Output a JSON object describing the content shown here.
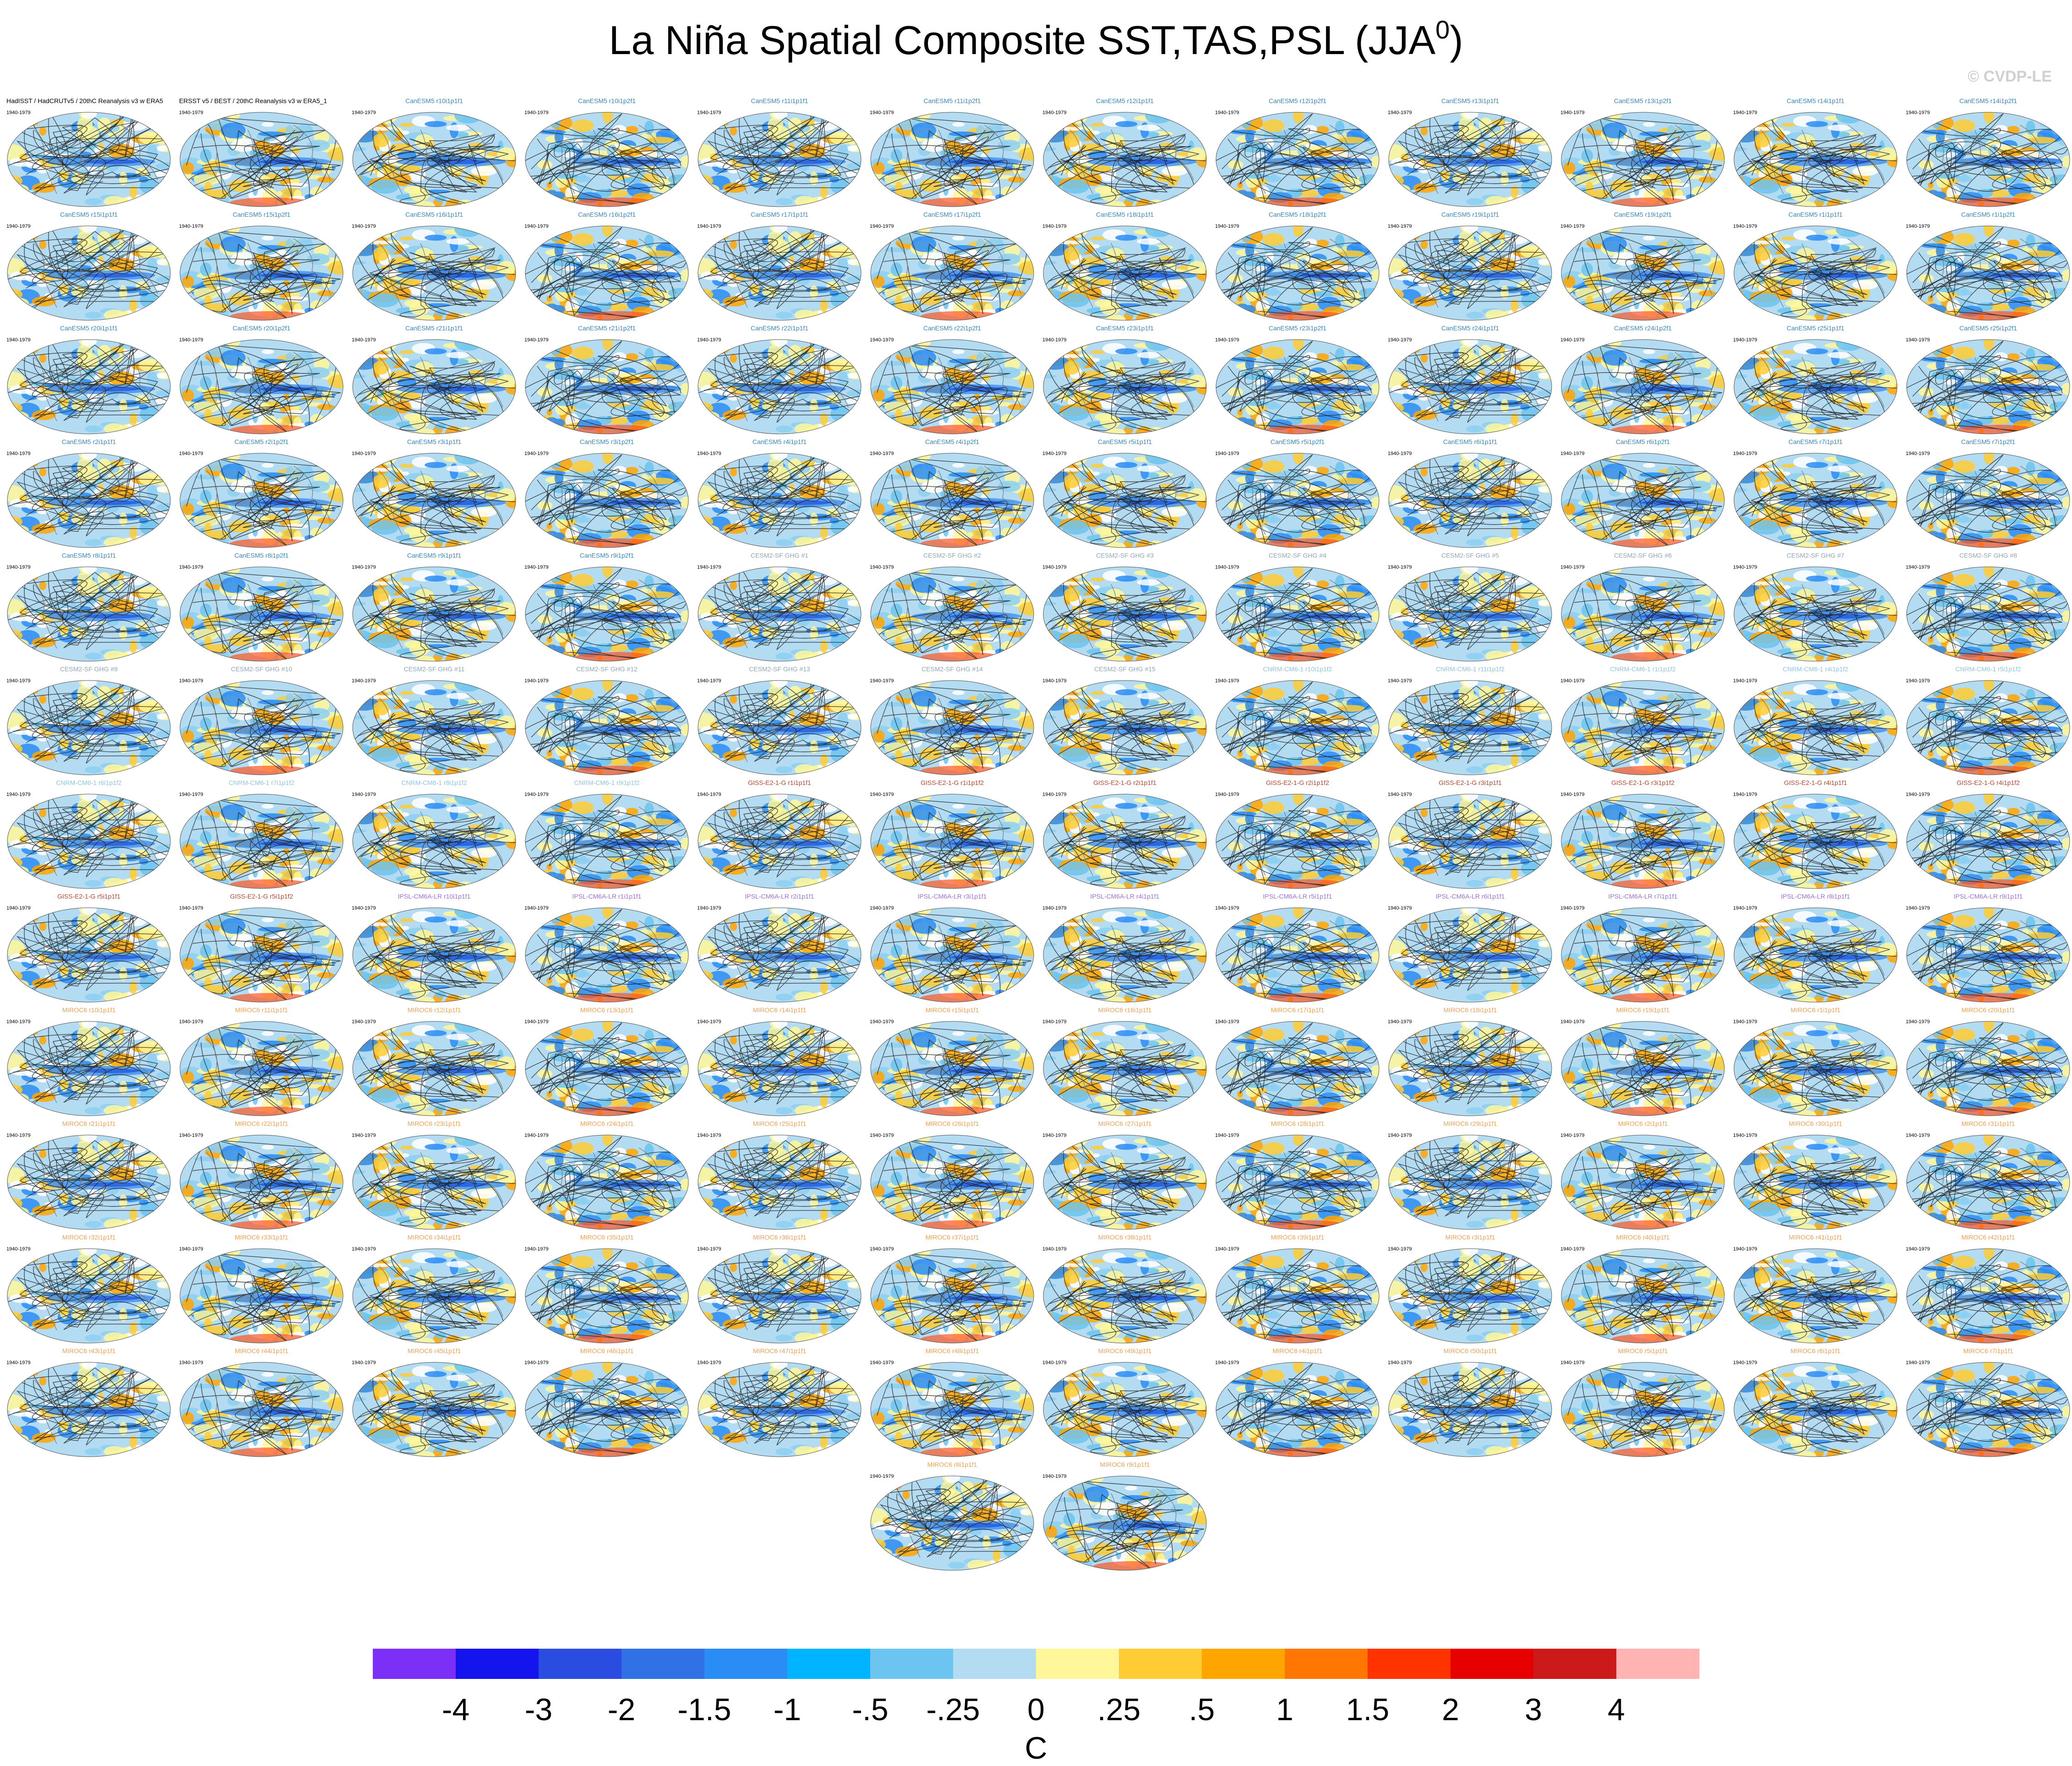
{
  "header": {
    "title": "La Niña Spatial Composite SST,TAS,PSL (JJA",
    "title_superscript": "0",
    "title_end": ")",
    "watermark": "© CVDP-LE"
  },
  "period": "1940-1979",
  "panels": [
    {
      "title": "HadISST / HadCRUTv5 / 20thC Reanalysis v3 w ERA5",
      "color": "#000000"
    },
    {
      "title": "ERSST v5 / BEST / 20thC Reanalysis v3 w ERA5_1",
      "color": "#000000"
    },
    {
      "title": "CanESM5 r10i1p1f1",
      "color": "#3a86b8"
    },
    {
      "title": "CanESM5 r10i1p2f1",
      "color": "#3a86b8"
    },
    {
      "title": "CanESM5 r11i1p1f1",
      "color": "#3a86b8"
    },
    {
      "title": "CanESM5 r11i1p2f1",
      "color": "#3a86b8"
    },
    {
      "title": "CanESM5 r12i1p1f1",
      "color": "#3a86b8"
    },
    {
      "title": "CanESM5 r12i1p2f1",
      "color": "#3a86b8"
    },
    {
      "title": "CanESM5 r13i1p1f1",
      "color": "#3a86b8"
    },
    {
      "title": "CanESM5 r13i1p2f1",
      "color": "#3a86b8"
    },
    {
      "title": "CanESM5 r14i1p1f1",
      "color": "#3a86b8"
    },
    {
      "title": "CanESM5 r14i1p2f1",
      "color": "#3a86b8"
    },
    {
      "title": "CanESM5 r15i1p1f1",
      "color": "#3a86b8"
    },
    {
      "title": "CanESM5 r15i1p2f1",
      "color": "#3a86b8"
    },
    {
      "title": "CanESM5 r16i1p1f1",
      "color": "#3a86b8"
    },
    {
      "title": "CanESM5 r16i1p2f1",
      "color": "#3a86b8"
    },
    {
      "title": "CanESM5 r17i1p1f1",
      "color": "#3a86b8"
    },
    {
      "title": "CanESM5 r17i1p2f1",
      "color": "#3a86b8"
    },
    {
      "title": "CanESM5 r18i1p1f1",
      "color": "#3a86b8"
    },
    {
      "title": "CanESM5 r18i1p2f1",
      "color": "#3a86b8"
    },
    {
      "title": "CanESM5 r19i1p1f1",
      "color": "#3a86b8"
    },
    {
      "title": "CanESM5 r19i1p2f1",
      "color": "#3a86b8"
    },
    {
      "title": "CanESM5 r1i1p1f1",
      "color": "#3a86b8"
    },
    {
      "title": "CanESM5 r1i1p2f1",
      "color": "#3a86b8"
    },
    {
      "title": "CanESM5 r20i1p1f1",
      "color": "#3a86b8"
    },
    {
      "title": "CanESM5 r20i1p2f1",
      "color": "#3a86b8"
    },
    {
      "title": "CanESM5 r21i1p1f1",
      "color": "#3a86b8"
    },
    {
      "title": "CanESM5 r21i1p2f1",
      "color": "#3a86b8"
    },
    {
      "title": "CanESM5 r22i1p1f1",
      "color": "#3a86b8"
    },
    {
      "title": "CanESM5 r22i1p2f1",
      "color": "#3a86b8"
    },
    {
      "title": "CanESM5 r23i1p1f1",
      "color": "#3a86b8"
    },
    {
      "title": "CanESM5 r23i1p2f1",
      "color": "#3a86b8"
    },
    {
      "title": "CanESM5 r24i1p1f1",
      "color": "#3a86b8"
    },
    {
      "title": "CanESM5 r24i1p2f1",
      "color": "#3a86b8"
    },
    {
      "title": "CanESM5 r25i1p1f1",
      "color": "#3a86b8"
    },
    {
      "title": "CanESM5 r25i1p2f1",
      "color": "#3a86b8"
    },
    {
      "title": "CanESM5 r2i1p1f1",
      "color": "#3a86b8"
    },
    {
      "title": "CanESM5 r2i1p2f1",
      "color": "#3a86b8"
    },
    {
      "title": "CanESM5 r3i1p1f1",
      "color": "#3a86b8"
    },
    {
      "title": "CanESM5 r3i1p2f1",
      "color": "#3a86b8"
    },
    {
      "title": "CanESM5 r4i1p1f1",
      "color": "#3a86b8"
    },
    {
      "title": "CanESM5 r4i1p2f1",
      "color": "#3a86b8"
    },
    {
      "title": "CanESM5 r5i1p1f1",
      "color": "#3a86b8"
    },
    {
      "title": "CanESM5 r5i1p2f1",
      "color": "#3a86b8"
    },
    {
      "title": "CanESM5 r6i1p1f1",
      "color": "#3a86b8"
    },
    {
      "title": "CanESM5 r6i1p2f1",
      "color": "#3a86b8"
    },
    {
      "title": "CanESM5 r7i1p1f1",
      "color": "#3a86b8"
    },
    {
      "title": "CanESM5 r7i1p2f1",
      "color": "#3a86b8"
    },
    {
      "title": "CanESM5 r8i1p1f1",
      "color": "#3a86b8"
    },
    {
      "title": "CanESM5 r8i1p2f1",
      "color": "#3a86b8"
    },
    {
      "title": "CanESM5 r9i1p1f1",
      "color": "#3a86b8"
    },
    {
      "title": "CanESM5 r9i1p2f1",
      "color": "#3a86b8"
    },
    {
      "title": "CESM2-SF GHG #1",
      "color": "#8fa6b4"
    },
    {
      "title": "CESM2-SF GHG #2",
      "color": "#8fa6b4"
    },
    {
      "title": "CESM2-SF GHG #3",
      "color": "#8fa6b4"
    },
    {
      "title": "CESM2-SF GHG #4",
      "color": "#8fa6b4"
    },
    {
      "title": "CESM2-SF GHG #5",
      "color": "#8fa6b4"
    },
    {
      "title": "CESM2-SF GHG #6",
      "color": "#8fa6b4"
    },
    {
      "title": "CESM2-SF GHG #7",
      "color": "#8fa6b4"
    },
    {
      "title": "CESM2-SF GHG #8",
      "color": "#8fa6b4"
    },
    {
      "title": "CESM2-SF GHG #9",
      "color": "#8fa6b4"
    },
    {
      "title": "CESM2-SF GHG #10",
      "color": "#8fa6b4"
    },
    {
      "title": "CESM2-SF GHG #11",
      "color": "#8fa6b4"
    },
    {
      "title": "CESM2-SF GHG #12",
      "color": "#8fa6b4"
    },
    {
      "title": "CESM2-SF GHG #13",
      "color": "#8fa6b4"
    },
    {
      "title": "CESM2-SF GHG #14",
      "color": "#8fa6b4"
    },
    {
      "title": "CESM2-SF GHG #15",
      "color": "#8fa6b4"
    },
    {
      "title": "CNRM-CM6-1 r10i1p1f2",
      "color": "#8fc4e0"
    },
    {
      "title": "CNRM-CM6-1 r11i1p1f2",
      "color": "#8fc4e0"
    },
    {
      "title": "CNRM-CM6-1 r1i1p1f2",
      "color": "#8fc4e0"
    },
    {
      "title": "CNRM-CM6-1 r4i1p1f2",
      "color": "#8fc4e0"
    },
    {
      "title": "CNRM-CM6-1 r5i1p1f2",
      "color": "#8fc4e0"
    },
    {
      "title": "CNRM-CM6-1 r6i1p1f2",
      "color": "#8fc4e0"
    },
    {
      "title": "CNRM-CM6-1 r7i1p1f2",
      "color": "#8fc4e0"
    },
    {
      "title": "CNRM-CM6-1 r8i1p1f2",
      "color": "#8fc4e0"
    },
    {
      "title": "CNRM-CM6-1 r9i1p1f2",
      "color": "#8fc4e0"
    },
    {
      "title": "GISS-E2-1-G r1i1p1f1",
      "color": "#b5452e"
    },
    {
      "title": "GISS-E2-1-G r1i1p1f2",
      "color": "#b5452e"
    },
    {
      "title": "GISS-E2-1-G r2i1p1f1",
      "color": "#b5452e"
    },
    {
      "title": "GISS-E2-1-G r2i1p1f2",
      "color": "#b5452e"
    },
    {
      "title": "GISS-E2-1-G r3i1p1f1",
      "color": "#b5452e"
    },
    {
      "title": "GISS-E2-1-G r3i1p1f2",
      "color": "#b5452e"
    },
    {
      "title": "GISS-E2-1-G r4i1p1f1",
      "color": "#b5452e"
    },
    {
      "title": "GISS-E2-1-G r4i1p1f2",
      "color": "#b5452e"
    },
    {
      "title": "GISS-E2-1-G r5i1p1f1",
      "color": "#b5452e"
    },
    {
      "title": "GISS-E2-1-G r5i1p1f2",
      "color": "#b5452e"
    },
    {
      "title": "IPSL-CM6A-LR r10i1p1f1",
      "color": "#9b6fd6"
    },
    {
      "title": "IPSL-CM6A-LR r1i1p1f1",
      "color": "#9b6fd6"
    },
    {
      "title": "IPSL-CM6A-LR r2i1p1f1",
      "color": "#9b6fd6"
    },
    {
      "title": "IPSL-CM6A-LR r3i1p1f1",
      "color": "#9b6fd6"
    },
    {
      "title": "IPSL-CM6A-LR r4i1p1f1",
      "color": "#9b6fd6"
    },
    {
      "title": "IPSL-CM6A-LR r5i1p1f1",
      "color": "#9b6fd6"
    },
    {
      "title": "IPSL-CM6A-LR r6i1p1f1",
      "color": "#9b6fd6"
    },
    {
      "title": "IPSL-CM6A-LR r7i1p1f1",
      "color": "#9b6fd6"
    },
    {
      "title": "IPSL-CM6A-LR r8i1p1f1",
      "color": "#9b6fd6"
    },
    {
      "title": "IPSL-CM6A-LR r9i1p1f1",
      "color": "#9b6fd6"
    },
    {
      "title": "MIROC6 r10i1p1f1",
      "color": "#f0a050"
    },
    {
      "title": "MIROC6 r11i1p1f1",
      "color": "#f0a050"
    },
    {
      "title": "MIROC6 r12i1p1f1",
      "color": "#f0a050"
    },
    {
      "title": "MIROC6 r13i1p1f1",
      "color": "#f0a050"
    },
    {
      "title": "MIROC6 r14i1p1f1",
      "color": "#f0a050"
    },
    {
      "title": "MIROC6 r15i1p1f1",
      "color": "#f0a050"
    },
    {
      "title": "MIROC6 r16i1p1f1",
      "color": "#f0a050"
    },
    {
      "title": "MIROC6 r17i1p1f1",
      "color": "#f0a050"
    },
    {
      "title": "MIROC6 r18i1p1f1",
      "color": "#f0a050"
    },
    {
      "title": "MIROC6 r19i1p1f1",
      "color": "#f0a050"
    },
    {
      "title": "MIROC6 r1i1p1f1",
      "color": "#f0a050"
    },
    {
      "title": "MIROC6 r20i1p1f1",
      "color": "#f0a050"
    },
    {
      "title": "MIROC6 r21i1p1f1",
      "color": "#f0a050"
    },
    {
      "title": "MIROC6 r22i1p1f1",
      "color": "#f0a050"
    },
    {
      "title": "MIROC6 r23i1p1f1",
      "color": "#f0a050"
    },
    {
      "title": "MIROC6 r24i1p1f1",
      "color": "#f0a050"
    },
    {
      "title": "MIROC6 r25i1p1f1",
      "color": "#f0a050"
    },
    {
      "title": "MIROC6 r26i1p1f1",
      "color": "#f0a050"
    },
    {
      "title": "MIROC6 r27i1p1f1",
      "color": "#f0a050"
    },
    {
      "title": "MIROC6 r28i1p1f1",
      "color": "#f0a050"
    },
    {
      "title": "MIROC6 r29i1p1f1",
      "color": "#f0a050"
    },
    {
      "title": "MIROC6 r2i1p1f1",
      "color": "#f0a050"
    },
    {
      "title": "MIROC6 r30i1p1f1",
      "color": "#f0a050"
    },
    {
      "title": "MIROC6 r31i1p1f1",
      "color": "#f0a050"
    },
    {
      "title": "MIROC6 r32i1p1f1",
      "color": "#f0a050"
    },
    {
      "title": "MIROC6 r33i1p1f1",
      "color": "#f0a050"
    },
    {
      "title": "MIROC6 r34i1p1f1",
      "color": "#f0a050"
    },
    {
      "title": "MIROC6 r35i1p1f1",
      "color": "#f0a050"
    },
    {
      "title": "MIROC6 r36i1p1f1",
      "color": "#f0a050"
    },
    {
      "title": "MIROC6 r37i1p1f1",
      "color": "#f0a050"
    },
    {
      "title": "MIROC6 r38i1p1f1",
      "color": "#f0a050"
    },
    {
      "title": "MIROC6 r39i1p1f1",
      "color": "#f0a050"
    },
    {
      "title": "MIROC6 r3i1p1f1",
      "color": "#f0a050"
    },
    {
      "title": "MIROC6 r40i1p1f1",
      "color": "#f0a050"
    },
    {
      "title": "MIROC6 r41i1p1f1",
      "color": "#f0a050"
    },
    {
      "title": "MIROC6 r42i1p1f1",
      "color": "#f0a050"
    },
    {
      "title": "MIROC6 r43i1p1f1",
      "color": "#f0a050"
    },
    {
      "title": "MIROC6 r44i1p1f1",
      "color": "#f0a050"
    },
    {
      "title": "MIROC6 r45i1p1f1",
      "color": "#f0a050"
    },
    {
      "title": "MIROC6 r46i1p1f1",
      "color": "#f0a050"
    },
    {
      "title": "MIROC6 r47i1p1f1",
      "color": "#f0a050"
    },
    {
      "title": "MIROC6 r48i1p1f1",
      "color": "#f0a050"
    },
    {
      "title": "MIROC6 r49i1p1f1",
      "color": "#f0a050"
    },
    {
      "title": "MIROC6 r4i1p1f1",
      "color": "#f0a050"
    },
    {
      "title": "MIROC6 r50i1p1f1",
      "color": "#f0a050"
    },
    {
      "title": "MIROC6 r5i1p1f1",
      "color": "#f0a050"
    },
    {
      "title": "MIROC6 r6i1p1f1",
      "color": "#f0a050"
    },
    {
      "title": "MIROC6 r7i1p1f1",
      "color": "#f0a050"
    },
    {
      "title": "MIROC6 r8i1p1f1",
      "color": "#f0a050"
    },
    {
      "title": "MIROC6 r9i1p1f1",
      "color": "#f0a050"
    }
  ],
  "colorbar": {
    "colors": [
      "#7b2ff7",
      "#1414ee",
      "#2a4ce0",
      "#3072e6",
      "#2a8cf5",
      "#00b4ff",
      "#6cc4f0",
      "#b3dcf2",
      "#fff799",
      "#ffcc33",
      "#ffa500",
      "#ff7700",
      "#ff3300",
      "#e60000",
      "#cc1a1a",
      "#ffb3b3"
    ],
    "labels": [
      "-4",
      "-3",
      "-2",
      "-1.5",
      "-1",
      "-.5",
      "-.25",
      "0",
      ".25",
      ".5",
      "1",
      "1.5",
      "2",
      "3",
      "4"
    ],
    "unit": "C"
  }
}
